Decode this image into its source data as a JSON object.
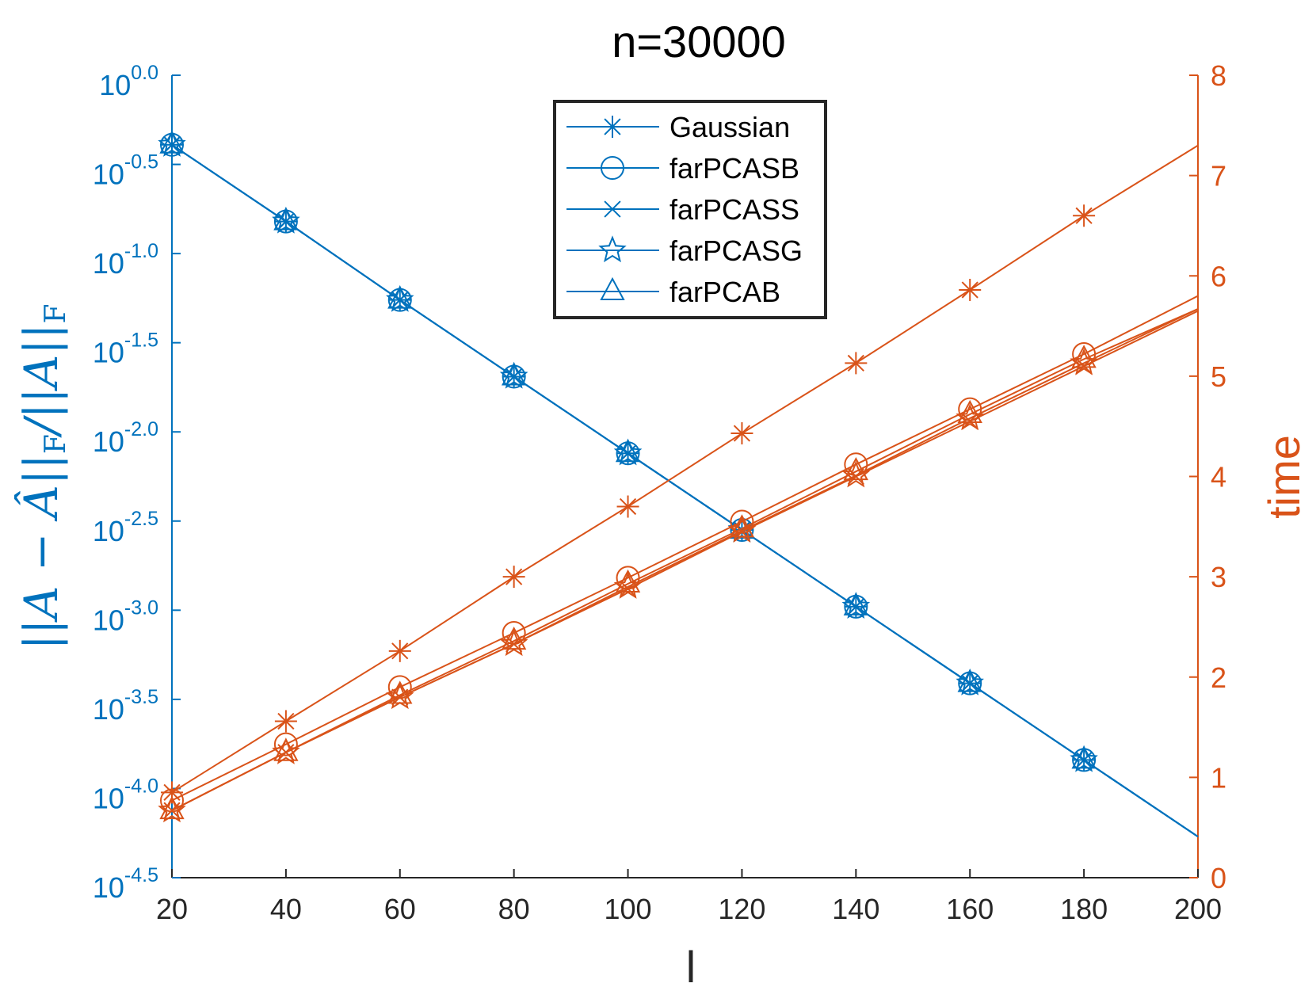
{
  "chart_data": {
    "type": "line",
    "title": "n=30000",
    "xlabel": "l",
    "ylabel_left": "||A − Â||F / ||A||F",
    "ylabel_left_parts": {
      "p1": "||A − ",
      "p2": "Â",
      "p3": "||",
      "sub": "F",
      "p4": "/||A||",
      "sub2": "F"
    },
    "ylabel_right": "time",
    "x": [
      20,
      40,
      60,
      80,
      100,
      120,
      140,
      160,
      180,
      200
    ],
    "xlim": [
      20,
      200
    ],
    "xticks": [
      "20",
      "40",
      "60",
      "80",
      "100",
      "120",
      "140",
      "160",
      "180",
      "200"
    ],
    "y_left_scale": "log10",
    "y_left_lim_exp": [
      -4.5,
      0.0
    ],
    "y_left_ticks": [
      {
        "exp": 0.0,
        "base": "10",
        "label": "0.0"
      },
      {
        "exp": -0.5,
        "base": "10",
        "label": "-0.5"
      },
      {
        "exp": -1.0,
        "base": "10",
        "label": "-1.0"
      },
      {
        "exp": -1.5,
        "base": "10",
        "label": "-1.5"
      },
      {
        "exp": -2.0,
        "base": "10",
        "label": "-2.0"
      },
      {
        "exp": -2.5,
        "base": "10",
        "label": "-2.5"
      },
      {
        "exp": -3.0,
        "base": "10",
        "label": "-3.0"
      },
      {
        "exp": -3.5,
        "base": "10",
        "label": "-3.5"
      },
      {
        "exp": -4.0,
        "base": "10",
        "label": "-4.0"
      },
      {
        "exp": -4.5,
        "base": "10",
        "label": "-4.5"
      }
    ],
    "y_right_lim": [
      0,
      8
    ],
    "y_right_ticks": [
      "0",
      "1",
      "2",
      "3",
      "4",
      "5",
      "6",
      "7",
      "8"
    ],
    "error_series": [
      {
        "name": "Gaussian",
        "marker": "asterisk",
        "log10_values": [
          -0.39,
          -0.82,
          -1.26,
          -1.69,
          -2.12,
          -2.55,
          -2.98,
          -3.41,
          -3.84,
          -4.27
        ]
      },
      {
        "name": "farPCASB",
        "marker": "circle",
        "log10_values": [
          -0.39,
          -0.82,
          -1.26,
          -1.69,
          -2.12,
          -2.55,
          -2.98,
          -3.41,
          -3.84,
          -4.27
        ]
      },
      {
        "name": "farPCASS",
        "marker": "x",
        "log10_values": [
          -0.39,
          -0.82,
          -1.26,
          -1.69,
          -2.12,
          -2.55,
          -2.98,
          -3.41,
          -3.84,
          -4.27
        ]
      },
      {
        "name": "farPCASG",
        "marker": "pentagram",
        "log10_values": [
          -0.39,
          -0.82,
          -1.26,
          -1.69,
          -2.12,
          -2.55,
          -2.98,
          -3.41,
          -3.84,
          -4.27
        ]
      },
      {
        "name": "farPCAB",
        "marker": "triangle",
        "log10_values": [
          -0.39,
          -0.82,
          -1.26,
          -1.69,
          -2.12,
          -2.55,
          -2.98,
          -3.41,
          -3.84,
          -4.27
        ]
      }
    ],
    "time_series": [
      {
        "name": "Gaussian",
        "marker": "asterisk",
        "values": [
          0.85,
          1.56,
          2.26,
          3.0,
          3.7,
          4.43,
          5.13,
          5.86,
          6.6,
          7.3
        ]
      },
      {
        "name": "farPCASB",
        "marker": "circle",
        "values": [
          0.77,
          1.33,
          1.9,
          2.44,
          2.99,
          3.55,
          4.12,
          4.67,
          5.22,
          5.8
        ]
      },
      {
        "name": "farPCASS",
        "marker": "x",
        "values": [
          0.67,
          1.25,
          1.8,
          2.33,
          2.88,
          3.45,
          4.0,
          4.55,
          5.1,
          5.65
        ]
      },
      {
        "name": "farPCASG",
        "marker": "pentagram",
        "values": [
          0.67,
          1.25,
          1.8,
          2.33,
          2.9,
          3.46,
          4.01,
          4.58,
          5.13,
          5.67
        ]
      },
      {
        "name": "farPCAB",
        "marker": "triangle",
        "values": [
          0.67,
          1.25,
          1.82,
          2.36,
          2.93,
          3.48,
          4.05,
          4.62,
          5.17,
          5.67
        ]
      }
    ],
    "legend": {
      "position": "top-center",
      "entries": [
        "Gaussian",
        "farPCASB",
        "farPCASS",
        "farPCASG",
        "farPCAB"
      ]
    },
    "grid": false,
    "colors": {
      "left": "#0072BD",
      "right": "#D95319",
      "axis": "#262626"
    }
  }
}
